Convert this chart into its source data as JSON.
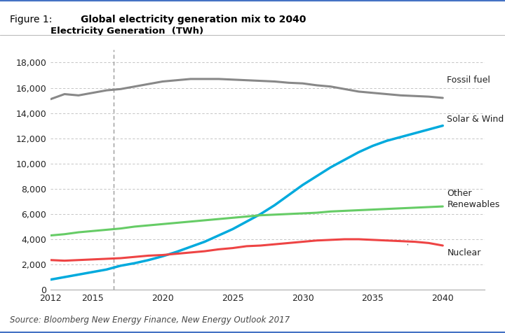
{
  "title_label": "Figure 1:",
  "title_text": "Global electricity generation mix to 2040",
  "ylabel": "Electricity Generation  (TWh)",
  "source": "Source: Bloomberg New Energy Finance, New Energy Outlook 2017",
  "years": [
    2012,
    2013,
    2014,
    2015,
    2016,
    2017,
    2018,
    2019,
    2020,
    2021,
    2022,
    2023,
    2024,
    2025,
    2026,
    2027,
    2028,
    2029,
    2030,
    2031,
    2032,
    2033,
    2034,
    2035,
    2036,
    2037,
    2038,
    2039,
    2040
  ],
  "fossil_fuel": [
    15100,
    15500,
    15400,
    15600,
    15800,
    15900,
    16100,
    16300,
    16500,
    16600,
    16700,
    16700,
    16700,
    16650,
    16600,
    16550,
    16500,
    16400,
    16350,
    16200,
    16100,
    15900,
    15700,
    15600,
    15500,
    15400,
    15350,
    15300,
    15200
  ],
  "solar_wind": [
    800,
    1000,
    1200,
    1400,
    1600,
    1900,
    2100,
    2350,
    2650,
    3000,
    3400,
    3800,
    4300,
    4800,
    5400,
    6000,
    6700,
    7500,
    8300,
    9000,
    9700,
    10300,
    10900,
    11400,
    11800,
    12100,
    12400,
    12700,
    13000
  ],
  "other_renewables": [
    4300,
    4400,
    4550,
    4650,
    4750,
    4850,
    5000,
    5100,
    5200,
    5300,
    5400,
    5500,
    5600,
    5700,
    5800,
    5900,
    5950,
    6000,
    6050,
    6100,
    6200,
    6250,
    6300,
    6350,
    6400,
    6450,
    6500,
    6550,
    6600
  ],
  "nuclear": [
    2350,
    2300,
    2350,
    2400,
    2450,
    2500,
    2600,
    2700,
    2750,
    2850,
    2950,
    3050,
    3200,
    3300,
    3450,
    3500,
    3600,
    3700,
    3800,
    3900,
    3950,
    4000,
    4000,
    3950,
    3900,
    3850,
    3800,
    3700,
    3500
  ],
  "fossil_color": "#888888",
  "solar_wind_color": "#00AADD",
  "other_renewables_color": "#66CC66",
  "nuclear_color": "#EE4444",
  "vline_x": 2016.5,
  "xlim": [
    2012,
    2043
  ],
  "ylim": [
    0,
    19000
  ],
  "yticks": [
    0,
    2000,
    4000,
    6000,
    8000,
    10000,
    12000,
    14000,
    16000,
    18000
  ],
  "xticks": [
    2012,
    2015,
    2020,
    2025,
    2030,
    2035,
    2040
  ],
  "background_color": "#FFFFFF",
  "grid_color": "#BBBBBB",
  "border_color": "#4472C4",
  "label_fossil": "Fossil fuel",
  "label_solar": "Solar & Wind",
  "label_other": "Other\nRenewables",
  "label_nuclear": "Nuclear",
  "ann_fossil_x": 2040.3,
  "ann_fossil_y": 16600,
  "ann_solar_x": 2040.3,
  "ann_solar_y": 13500,
  "ann_other_x": 2040.3,
  "ann_other_y": 7200,
  "ann_nuclear_x": 2040.3,
  "ann_nuclear_y": 2900,
  "title_fontsize": 11,
  "label_fontsize": 9,
  "tick_fontsize": 9,
  "source_fontsize": 8.5
}
